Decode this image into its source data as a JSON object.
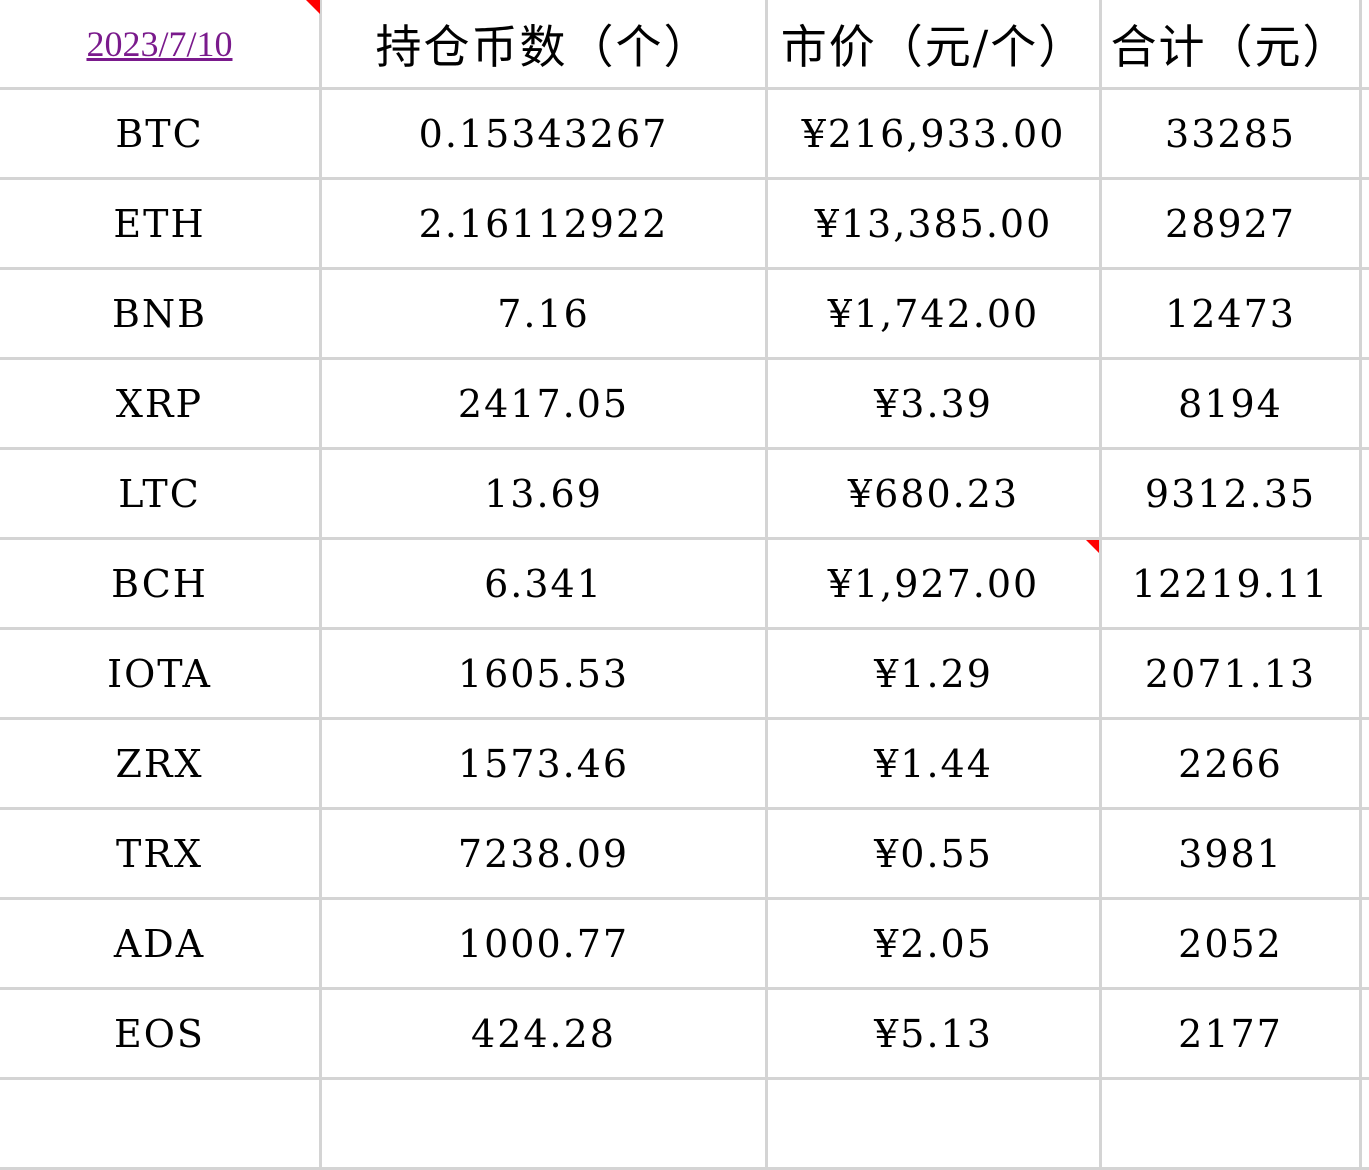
{
  "header": {
    "date": "2023/7/10",
    "col_holdings": "持仓币数（个）",
    "col_price": "市价（元/个）",
    "col_total": "合计（元）"
  },
  "rows": [
    {
      "coin": "BTC",
      "holdings": "0.15343267",
      "price": "¥216,933.00",
      "total": "33285"
    },
    {
      "coin": "ETH",
      "holdings": "2.16112922",
      "price": "¥13,385.00",
      "total": "28927"
    },
    {
      "coin": "BNB",
      "holdings": "7.16",
      "price": "¥1,742.00",
      "total": "12473"
    },
    {
      "coin": "XRP",
      "holdings": "2417.05",
      "price": "¥3.39",
      "total": "8194"
    },
    {
      "coin": "LTC",
      "holdings": "13.69",
      "price": "¥680.23",
      "total": "9312.35"
    },
    {
      "coin": "BCH",
      "holdings": "6.341",
      "price": "¥1,927.00",
      "total": "12219.11"
    },
    {
      "coin": "IOTA",
      "holdings": "1605.53",
      "price": "¥1.29",
      "total": "2071.13"
    },
    {
      "coin": "ZRX",
      "holdings": "1573.46",
      "price": "¥1.44",
      "total": "2266"
    },
    {
      "coin": "TRX",
      "holdings": "7238.09",
      "price": "¥0.55",
      "total": "3981"
    },
    {
      "coin": "ADA",
      "holdings": "1000.77",
      "price": "¥2.05",
      "total": "2052"
    },
    {
      "coin": "EOS",
      "holdings": "424.28",
      "price": "¥5.13",
      "total": "2177"
    }
  ],
  "colors": {
    "gridline": "#d4d4d4",
    "link": "#7a1a8c",
    "comment_marker": "#ff0000"
  }
}
